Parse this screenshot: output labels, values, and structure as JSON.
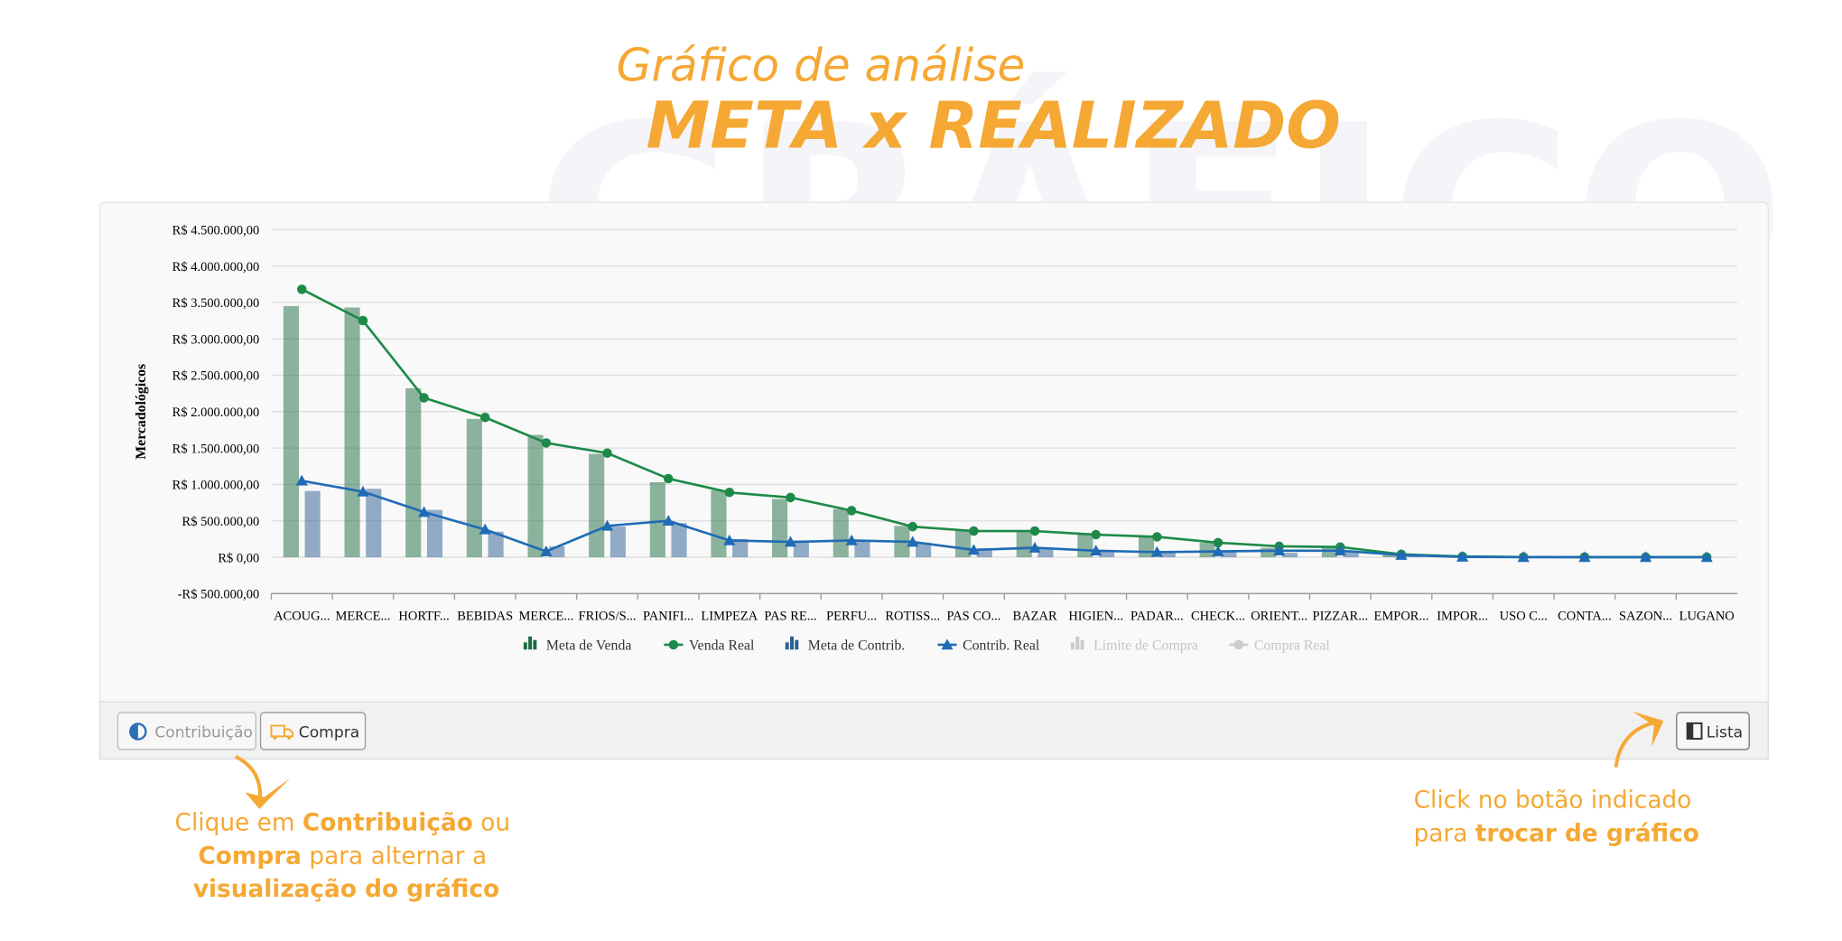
{
  "header": {
    "watermark": "GRÁFICO",
    "title": "Gráfico de análise",
    "subtitle": "META x REALIZADO"
  },
  "chart_data": {
    "type": "bar-line",
    "y_label": "Mercadológicos",
    "categories": [
      "ACOUG...",
      "MERCE...",
      "HORTF...",
      "BEBIDAS",
      "MERCE...",
      "FRIOS/S...",
      "PANIFI...",
      "LIMPEZA",
      "PAS RE...",
      "PERFU...",
      "ROTISS...",
      "PAS CO...",
      "BAZAR",
      "HIGIEN...",
      "PADAR...",
      "CHECK...",
      "ORIENT...",
      "PIZZAR...",
      "EMPOR...",
      "IMPOR...",
      "USO C...",
      "CONTA...",
      "SAZON...",
      "LUGANO"
    ],
    "ylim": [
      -500000,
      4500000
    ],
    "yticks": [
      {
        "value": -500000,
        "label": "-R$ 500.000,00"
      },
      {
        "value": 0,
        "label": "R$ 0,00"
      },
      {
        "value": 500000,
        "label": "R$ 500.000,00"
      },
      {
        "value": 1000000,
        "label": "R$ 1.000.000,00"
      },
      {
        "value": 1500000,
        "label": "R$ 1.500.000,00"
      },
      {
        "value": 2000000,
        "label": "R$ 2.000.000,00"
      },
      {
        "value": 2500000,
        "label": "R$ 2.500.000,00"
      },
      {
        "value": 3000000,
        "label": "R$ 3.000.000,00"
      },
      {
        "value": 3500000,
        "label": "R$ 3.500.000,00"
      },
      {
        "value": 4000000,
        "label": "R$ 4.000.000,00"
      },
      {
        "value": 4500000,
        "label": "R$ 4.500.000,00"
      }
    ],
    "grid": true,
    "series": [
      {
        "name": "Meta de Venda",
        "kind": "bar",
        "color": "#1e6b3f",
        "values": [
          3450000,
          3430000,
          2320000,
          1900000,
          1680000,
          1420000,
          1030000,
          920000,
          800000,
          660000,
          430000,
          380000,
          370000,
          330000,
          290000,
          200000,
          130000,
          130000,
          40000,
          15000,
          5000,
          3000,
          2000,
          1000
        ]
      },
      {
        "name": "Venda Real",
        "kind": "line",
        "marker": "circle",
        "color": "#1e8a4a",
        "values": [
          3680000,
          3250000,
          2190000,
          1920000,
          1570000,
          1430000,
          1080000,
          890000,
          820000,
          640000,
          420000,
          360000,
          360000,
          310000,
          280000,
          200000,
          150000,
          140000,
          40000,
          10000,
          3000,
          2000,
          1000,
          500
        ]
      },
      {
        "name": "Meta de Contrib.",
        "kind": "bar",
        "color": "#2a5e94",
        "values": [
          910000,
          940000,
          650000,
          350000,
          150000,
          420000,
          470000,
          250000,
          230000,
          230000,
          200000,
          120000,
          110000,
          100000,
          80000,
          70000,
          60000,
          70000,
          30000,
          10000,
          2000,
          1000,
          1000,
          500
        ]
      },
      {
        "name": "Contrib. Real",
        "kind": "line",
        "marker": "triangle",
        "color": "#1f6bb5",
        "values": [
          1050000,
          900000,
          620000,
          380000,
          80000,
          430000,
          500000,
          230000,
          210000,
          230000,
          210000,
          100000,
          130000,
          90000,
          70000,
          80000,
          90000,
          90000,
          30000,
          5000,
          1000,
          1000,
          500,
          500
        ]
      }
    ],
    "hidden_series": [
      {
        "name": "Limite de Compra",
        "marker": "bar"
      },
      {
        "name": "Compra Real",
        "marker": "circle"
      }
    ]
  },
  "buttons": {
    "contrib": "Contribuição",
    "compra": "Compra",
    "lista": "Lista"
  },
  "annotation_left": {
    "line1": [
      "Clique em ",
      "Contribuição",
      " ou"
    ],
    "line2": [
      "Compra",
      " para alternar a"
    ],
    "line3": "visualização do gráfico"
  },
  "annotation_right": {
    "line1": "Click no botão indicado",
    "line2": [
      "para ",
      "trocar de gráfico"
    ]
  }
}
